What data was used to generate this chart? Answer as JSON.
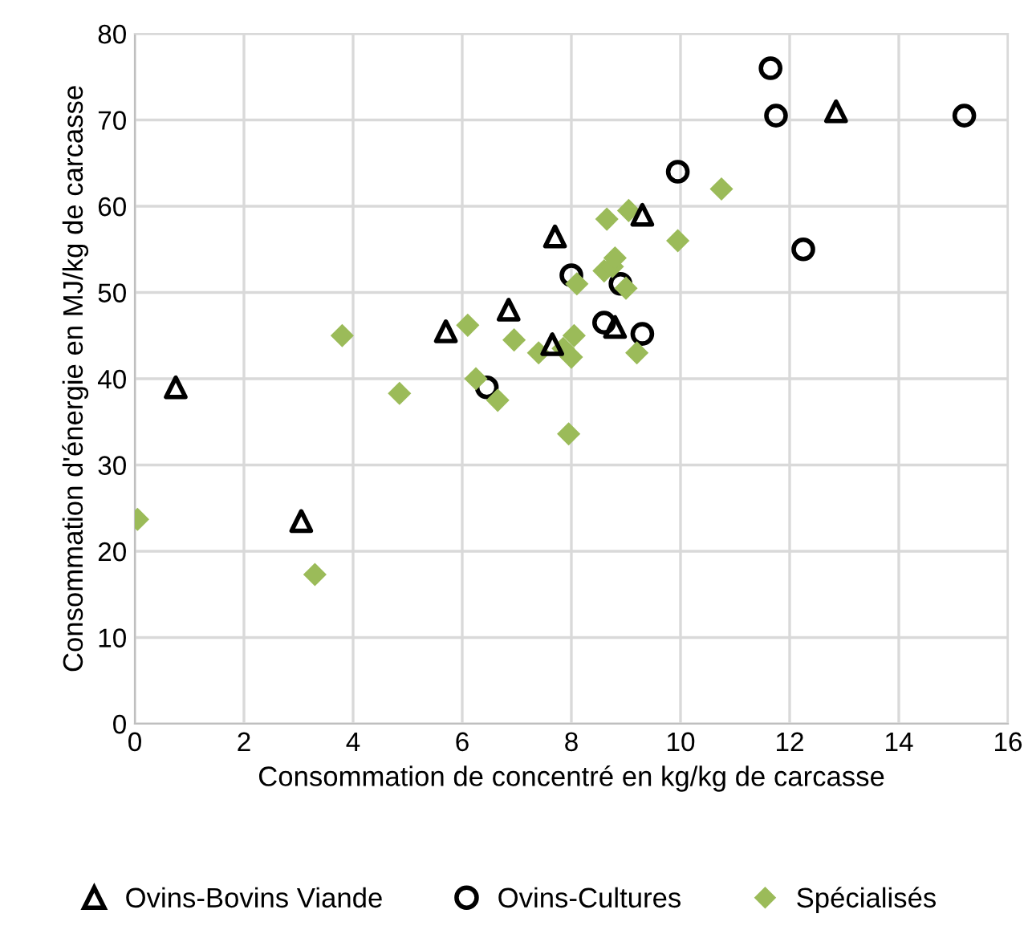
{
  "chart_data": {
    "type": "scatter",
    "xlabel": "Consommation de concentré en kg/kg de carcasse",
    "ylabel": "Consommation d'énergie en MJ/kg de carcasse",
    "xlim": [
      0,
      16
    ],
    "xticks": [
      0,
      2,
      4,
      6,
      8,
      10,
      12,
      14,
      16
    ],
    "ylim": [
      0,
      80
    ],
    "yticks": [
      0,
      10,
      20,
      30,
      40,
      50,
      60,
      70,
      80
    ],
    "grid": true,
    "legend": "bottom",
    "series": [
      {
        "name": "Ovins-Bovins Viande",
        "color": "#000000",
        "marker": "triangle",
        "x": [
          0.75,
          3.05,
          5.7,
          6.85,
          7.7,
          7.65,
          8.8,
          9.3,
          12.85
        ],
        "values": [
          39,
          23.5,
          45.5,
          48,
          56.5,
          44,
          46,
          59,
          71
        ]
      },
      {
        "name": "Ovins-Cultures",
        "color": "#000000",
        "marker": "circle",
        "x": [
          6.45,
          8.0,
          8.6,
          8.9,
          9.3,
          9.95,
          11.65,
          11.75,
          12.25,
          15.2
        ],
        "values": [
          39,
          52,
          46.5,
          51,
          45.2,
          64,
          76,
          70.5,
          55,
          70.5
        ]
      },
      {
        "name": "Spécialisés",
        "color": "#9bbb59",
        "marker": "diamond",
        "x": [
          0.05,
          3.3,
          3.8,
          4.85,
          6.1,
          6.25,
          6.65,
          6.95,
          7.4,
          7.85,
          7.95,
          8.0,
          8.05,
          8.1,
          8.6,
          8.65,
          8.75,
          8.8,
          9.05,
          9.0,
          9.2,
          9.95,
          10.75
        ],
        "values": [
          23.7,
          17.3,
          45,
          38.3,
          46.2,
          40,
          37.5,
          44.5,
          43,
          43.5,
          33.6,
          42.5,
          45,
          51,
          52.5,
          58.5,
          53,
          54,
          59.5,
          50.5,
          43,
          56,
          62
        ]
      }
    ]
  }
}
